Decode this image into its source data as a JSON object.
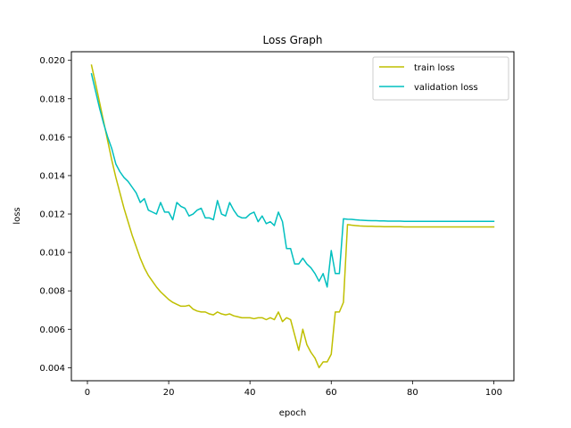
{
  "chart_data": {
    "type": "line",
    "title": "Loss Graph",
    "xlabel": "epoch",
    "ylabel": "loss",
    "xlim": [
      -3.95,
      104.95
    ],
    "ylim": [
      0.00332,
      0.02045
    ],
    "xticks": [
      0,
      20,
      40,
      60,
      80,
      100
    ],
    "xtick_labels": [
      "0",
      "20",
      "40",
      "60",
      "80",
      "100"
    ],
    "yticks": [
      0.004,
      0.006,
      0.008,
      0.01,
      0.012,
      0.014,
      0.016,
      0.018,
      0.02
    ],
    "ytick_labels": [
      "0.004",
      "0.006",
      "0.008",
      "0.010",
      "0.012",
      "0.014",
      "0.016",
      "0.018",
      "0.020"
    ],
    "grid": false,
    "legend_position": "top-right",
    "x": [
      1,
      2,
      3,
      4,
      5,
      6,
      7,
      8,
      9,
      10,
      11,
      12,
      13,
      14,
      15,
      16,
      17,
      18,
      19,
      20,
      21,
      22,
      23,
      24,
      25,
      26,
      27,
      28,
      29,
      30,
      31,
      32,
      33,
      34,
      35,
      36,
      37,
      38,
      39,
      40,
      41,
      42,
      43,
      44,
      45,
      46,
      47,
      48,
      49,
      50,
      51,
      52,
      53,
      54,
      55,
      56,
      57,
      58,
      59,
      60,
      61,
      62,
      63,
      64,
      65,
      66,
      67,
      68,
      69,
      70,
      71,
      72,
      73,
      74,
      75,
      76,
      77,
      78,
      79,
      80,
      81,
      82,
      83,
      84,
      85,
      86,
      87,
      88,
      89,
      90,
      91,
      92,
      93,
      94,
      95,
      96,
      97,
      98,
      99,
      100
    ],
    "series": [
      {
        "name": "train loss",
        "color": "#bfbf00",
        "values": [
          0.01975,
          0.0188,
          0.0178,
          0.0168,
          0.0158,
          0.0148,
          0.0139,
          0.0131,
          0.0123,
          0.0116,
          0.0109,
          0.0103,
          0.0097,
          0.0092,
          0.0088,
          0.0085,
          0.0082,
          0.00795,
          0.00775,
          0.00755,
          0.0074,
          0.0073,
          0.0072,
          0.0072,
          0.00725,
          0.00705,
          0.00695,
          0.0069,
          0.0069,
          0.0068,
          0.00675,
          0.0069,
          0.0068,
          0.00675,
          0.0068,
          0.0067,
          0.00665,
          0.0066,
          0.0066,
          0.0066,
          0.00655,
          0.0066,
          0.0066,
          0.0065,
          0.0066,
          0.0065,
          0.0069,
          0.0064,
          0.0066,
          0.0065,
          0.0057,
          0.0049,
          0.006,
          0.0052,
          0.0048,
          0.0045,
          0.004,
          0.0043,
          0.0043,
          0.0047,
          0.0069,
          0.0069,
          0.0074,
          0.01145,
          0.01142,
          0.0114,
          0.01138,
          0.01137,
          0.01136,
          0.01136,
          0.01135,
          0.01135,
          0.01134,
          0.01134,
          0.01134,
          0.01134,
          0.01134,
          0.01133,
          0.01133,
          0.01133,
          0.01133,
          0.01133,
          0.01133,
          0.01133,
          0.01133,
          0.01133,
          0.01133,
          0.01133,
          0.01133,
          0.01133,
          0.01133,
          0.01133,
          0.01133,
          0.01133,
          0.01133,
          0.01133,
          0.01133,
          0.01133,
          0.01133,
          0.01133
        ]
      },
      {
        "name": "validation loss",
        "color": "#00bfbf",
        "values": [
          0.0193,
          0.0184,
          0.0175,
          0.0167,
          0.016,
          0.0154,
          0.0146,
          0.0142,
          0.0139,
          0.0137,
          0.0134,
          0.0131,
          0.0126,
          0.0128,
          0.0122,
          0.0121,
          0.012,
          0.0126,
          0.0121,
          0.0121,
          0.0117,
          0.0126,
          0.0124,
          0.0123,
          0.0119,
          0.012,
          0.0122,
          0.0123,
          0.0118,
          0.0118,
          0.0117,
          0.0127,
          0.012,
          0.0119,
          0.0126,
          0.0122,
          0.0119,
          0.0118,
          0.0118,
          0.012,
          0.0121,
          0.0116,
          0.0119,
          0.0115,
          0.0116,
          0.0114,
          0.0121,
          0.0116,
          0.0102,
          0.0102,
          0.0094,
          0.0094,
          0.0097,
          0.0094,
          0.0092,
          0.0089,
          0.0085,
          0.0089,
          0.0082,
          0.0101,
          0.0089,
          0.0089,
          0.01175,
          0.01173,
          0.01172,
          0.0117,
          0.01168,
          0.01167,
          0.01166,
          0.01165,
          0.01165,
          0.01164,
          0.01164,
          0.01163,
          0.01163,
          0.01163,
          0.01163,
          0.01162,
          0.01162,
          0.01162,
          0.01162,
          0.01162,
          0.01162,
          0.01162,
          0.01162,
          0.01162,
          0.01162,
          0.01162,
          0.01162,
          0.01162,
          0.01162,
          0.01162,
          0.01162,
          0.01162,
          0.01162,
          0.01162,
          0.01162,
          0.01162,
          0.01162,
          0.01162
        ]
      }
    ]
  }
}
